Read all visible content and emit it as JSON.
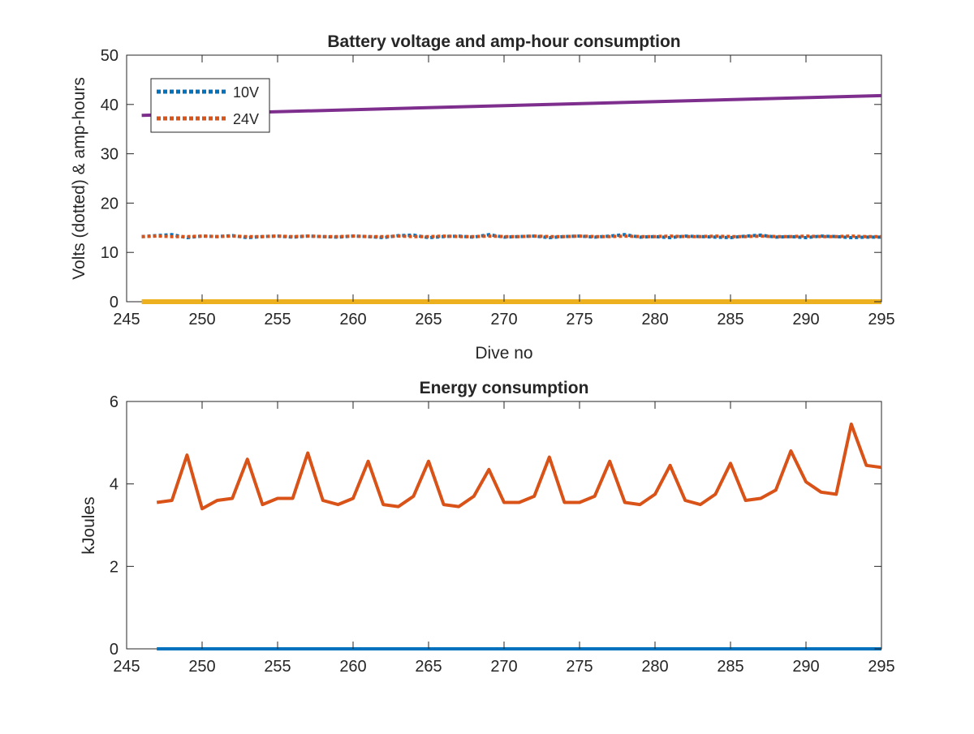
{
  "chart_data": [
    {
      "type": "line",
      "title": "Battery voltage and amp-hour consumption",
      "xlabel": "Dive no",
      "ylabel": "Volts (dotted) & amp-hours",
      "xlim": [
        245,
        295
      ],
      "ylim": [
        0,
        50
      ],
      "xticks": [
        "245",
        "250",
        "255",
        "260",
        "265",
        "270",
        "275",
        "280",
        "285",
        "290",
        "295"
      ],
      "yticks": [
        "0",
        "10",
        "20",
        "30",
        "40",
        "50"
      ],
      "grid": false,
      "legend_position": "top-left",
      "series": [
        {
          "name": "10V",
          "style": "dotted",
          "color": "#0072BD",
          "x": [
            246,
            247,
            248,
            249,
            250,
            251,
            252,
            253,
            254,
            255,
            256,
            257,
            258,
            259,
            260,
            261,
            262,
            263,
            264,
            265,
            266,
            267,
            268,
            269,
            270,
            271,
            272,
            273,
            274,
            275,
            276,
            277,
            278,
            279,
            280,
            281,
            282,
            283,
            284,
            285,
            286,
            287,
            288,
            289,
            290,
            291,
            292,
            293,
            294,
            295
          ],
          "values": [
            13.2,
            13.4,
            13.6,
            13.0,
            13.3,
            13.2,
            13.4,
            13.0,
            13.2,
            13.3,
            13.1,
            13.3,
            13.2,
            13.1,
            13.3,
            13.2,
            13.0,
            13.4,
            13.5,
            13.0,
            13.2,
            13.3,
            13.1,
            13.6,
            13.1,
            13.2,
            13.3,
            13.0,
            13.2,
            13.3,
            13.1,
            13.3,
            13.6,
            13.1,
            13.2,
            13.0,
            13.3,
            13.2,
            13.1,
            13.0,
            13.3,
            13.5,
            13.1,
            13.2,
            13.0,
            13.3,
            13.2,
            13.0,
            13.1,
            13.1
          ]
        },
        {
          "name": "24V",
          "style": "dotted",
          "color": "#D95319",
          "x": [
            246,
            247,
            248,
            249,
            250,
            251,
            252,
            253,
            254,
            255,
            256,
            257,
            258,
            259,
            260,
            261,
            262,
            263,
            264,
            265,
            266,
            267,
            268,
            269,
            270,
            271,
            272,
            273,
            274,
            275,
            276,
            277,
            278,
            279,
            280,
            281,
            282,
            283,
            284,
            285,
            286,
            287,
            288,
            289,
            290,
            291,
            292,
            293,
            294,
            295
          ],
          "values": [
            13.2,
            13.3,
            13.2,
            13.2,
            13.3,
            13.2,
            13.3,
            13.2,
            13.2,
            13.3,
            13.2,
            13.3,
            13.2,
            13.2,
            13.3,
            13.2,
            13.2,
            13.3,
            13.2,
            13.2,
            13.3,
            13.2,
            13.2,
            13.3,
            13.2,
            13.2,
            13.3,
            13.2,
            13.2,
            13.3,
            13.2,
            13.2,
            13.3,
            13.2,
            13.2,
            13.3,
            13.2,
            13.2,
            13.3,
            13.2,
            13.2,
            13.3,
            13.2,
            13.2,
            13.3,
            13.2,
            13.2,
            13.3,
            13.2,
            13.2
          ]
        },
        {
          "style": "solid",
          "color": "#7E2F8E",
          "x": [
            246,
            295
          ],
          "values": [
            37.8,
            41.8
          ]
        },
        {
          "style": "solid",
          "color": "#EDB120",
          "x": [
            246,
            295
          ],
          "values": [
            0,
            0
          ]
        }
      ]
    },
    {
      "type": "line",
      "title": "Energy consumption",
      "xlabel": "",
      "ylabel": "kJoules",
      "xlim": [
        245,
        295
      ],
      "ylim": [
        0,
        6
      ],
      "xticks": [
        "245",
        "250",
        "255",
        "260",
        "265",
        "270",
        "275",
        "280",
        "285",
        "290",
        "295"
      ],
      "yticks": [
        "0",
        "2",
        "4",
        "6"
      ],
      "grid": false,
      "series": [
        {
          "style": "solid",
          "color": "#D95319",
          "x": [
            247,
            248,
            249,
            250,
            251,
            252,
            253,
            254,
            255,
            256,
            257,
            258,
            259,
            260,
            261,
            262,
            263,
            264,
            265,
            266,
            267,
            268,
            269,
            270,
            271,
            272,
            273,
            274,
            275,
            276,
            277,
            278,
            279,
            280,
            281,
            282,
            283,
            284,
            285,
            286,
            287,
            288,
            289,
            290,
            291,
            292,
            293,
            294,
            295
          ],
          "values": [
            3.55,
            3.6,
            4.7,
            3.4,
            3.6,
            3.65,
            4.6,
            3.5,
            3.65,
            3.65,
            4.75,
            3.6,
            3.5,
            3.65,
            4.55,
            3.5,
            3.45,
            3.7,
            4.55,
            3.5,
            3.45,
            3.7,
            4.35,
            3.55,
            3.55,
            3.7,
            4.65,
            3.55,
            3.55,
            3.7,
            4.55,
            3.55,
            3.5,
            3.75,
            4.45,
            3.6,
            3.5,
            3.75,
            4.5,
            3.6,
            3.65,
            3.85,
            4.8,
            4.05,
            3.8,
            3.75,
            5.45,
            4.45,
            4.4
          ]
        },
        {
          "style": "solid",
          "color": "#0072BD",
          "x": [
            247,
            295
          ],
          "values": [
            0,
            0
          ]
        }
      ]
    }
  ]
}
